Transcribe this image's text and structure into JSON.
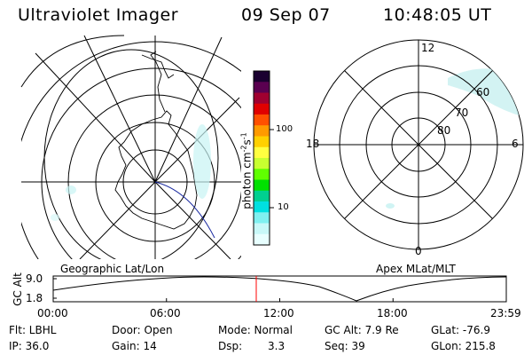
{
  "header": {
    "instrument": "Ultraviolet Imager",
    "date": "09 Sep 07",
    "time": "10:48:05 UT"
  },
  "colorbar": {
    "unit_label": "photon cm",
    "unit_exp1": "-2",
    "unit_mid": "s",
    "unit_exp2": "-1",
    "ticks": [
      "100",
      "10"
    ],
    "colors": [
      "#1a0030",
      "#5a0050",
      "#a00030",
      "#e00000",
      "#ff5000",
      "#ff9a00",
      "#ffd000",
      "#ffff40",
      "#c8ff30",
      "#60ff00",
      "#00e000",
      "#00d090",
      "#00e0e0",
      "#80f0f0",
      "#c8f8f8",
      "#e8ffff"
    ]
  },
  "right_plot": {
    "mlt_labels": {
      "top": "12",
      "left": "18",
      "right": "6",
      "bottom": "0"
    },
    "lat_labels": [
      "60",
      "70",
      "80"
    ],
    "caption": "Apex MLat/MLT"
  },
  "left_plot": {
    "caption": "Geographic Lat/Lon"
  },
  "altitude_plot": {
    "ylabel": "GC Alt",
    "yticks": [
      "9.0",
      "1.8"
    ],
    "xticks": [
      "00:00",
      "06:00",
      "12:00",
      "18:00",
      "23:59"
    ],
    "marker_color": "#ff0000"
  },
  "info": {
    "flt": "Flt: LBHL",
    "ip": "IP: 36.0",
    "door": "Door: Open",
    "gain": "Gain: 14",
    "mode": "Mode: Normal",
    "dsp_label": "Dsp:",
    "dsp_value": "3.3",
    "gc_alt": "GC Alt: 7.9 Re",
    "seq": "Seq: 39",
    "glat": "GLat: -76.9",
    "glon": "GLon: 215.8"
  }
}
